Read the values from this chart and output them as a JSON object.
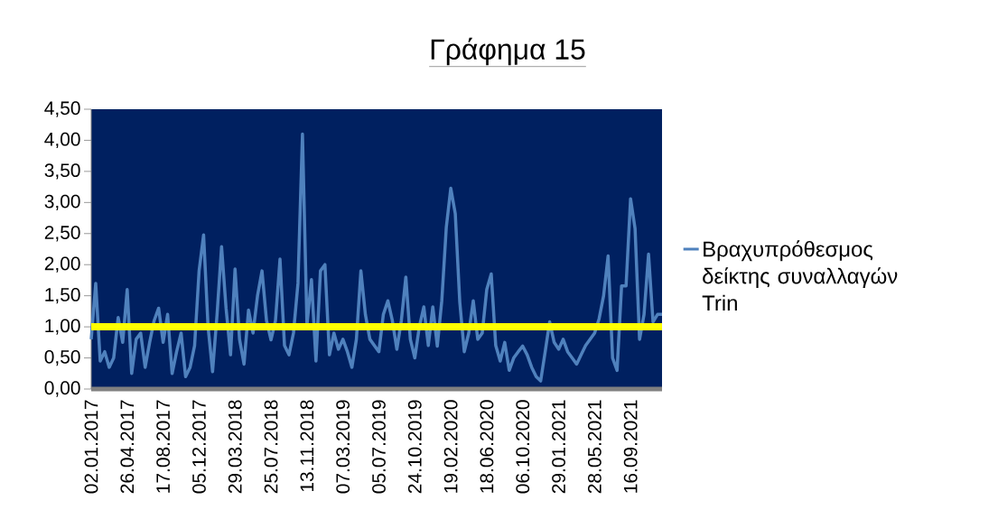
{
  "chart_data": {
    "type": "line",
    "title": "Γράφημα 15",
    "categories": [
      "02.01.2017",
      null,
      null,
      null,
      null,
      null,
      null,
      null,
      "26.04.2017",
      null,
      null,
      null,
      null,
      null,
      null,
      null,
      "17.08.2017",
      null,
      null,
      null,
      null,
      null,
      null,
      null,
      "05.12.2017",
      null,
      null,
      null,
      null,
      null,
      null,
      null,
      "29.03.2018",
      null,
      null,
      null,
      null,
      null,
      null,
      null,
      "25.07.2018",
      null,
      null,
      null,
      null,
      null,
      null,
      null,
      "13.11.2018",
      null,
      null,
      null,
      null,
      null,
      null,
      null,
      "07.03.2019",
      null,
      null,
      null,
      null,
      null,
      null,
      null,
      "05.07.2019",
      null,
      null,
      null,
      null,
      null,
      null,
      null,
      "24.10.2019",
      null,
      null,
      null,
      null,
      null,
      null,
      null,
      "19.02.2020",
      null,
      null,
      null,
      null,
      null,
      null,
      null,
      "18.06.2020",
      null,
      null,
      null,
      null,
      null,
      null,
      null,
      "06.10.2020",
      null,
      null,
      null,
      null,
      null,
      null,
      null,
      "29.01.2021",
      null,
      null,
      null,
      null,
      null,
      null,
      null,
      "28.05.2021",
      null,
      null,
      null,
      null,
      null,
      null,
      null,
      "16.09.2021",
      null,
      null,
      null,
      null,
      null,
      null,
      null
    ],
    "series": [
      {
        "name": "Βραχυπρόθεσμος δείκτης συναλλαγών Trin",
        "color": "#4f81bd",
        "values": [
          0.8,
          1.7,
          0.45,
          0.6,
          0.35,
          0.5,
          1.15,
          0.75,
          1.6,
          0.25,
          0.8,
          0.9,
          0.35,
          0.75,
          1.1,
          1.3,
          0.75,
          1.2,
          0.25,
          0.6,
          0.9,
          0.2,
          0.35,
          0.7,
          1.9,
          2.48,
          1.0,
          0.28,
          1.2,
          2.29,
          1.3,
          0.55,
          1.93,
          0.8,
          0.4,
          1.27,
          0.9,
          1.5,
          1.9,
          1.1,
          0.79,
          1.1,
          2.09,
          0.7,
          0.55,
          0.9,
          1.7,
          4.1,
          1.03,
          1.76,
          0.45,
          1.9,
          2.0,
          0.55,
          0.9,
          0.64,
          0.8,
          0.6,
          0.35,
          0.8,
          1.9,
          1.2,
          0.8,
          0.7,
          0.6,
          1.2,
          1.42,
          1.1,
          0.64,
          1.1,
          1.8,
          0.8,
          0.5,
          1.0,
          1.32,
          0.7,
          1.32,
          0.69,
          1.42,
          2.6,
          3.23,
          2.82,
          1.4,
          0.6,
          0.9,
          1.42,
          0.8,
          0.9,
          1.6,
          1.85,
          0.7,
          0.45,
          0.75,
          0.3,
          0.5,
          0.6,
          0.69,
          0.55,
          0.35,
          0.2,
          0.13,
          0.6,
          1.08,
          0.75,
          0.64,
          0.8,
          0.6,
          0.5,
          0.4,
          0.55,
          0.7,
          null,
          0.9,
          1.13,
          1.5,
          2.14,
          0.5,
          0.3,
          1.66,
          1.66,
          3.06,
          2.58,
          0.8,
          1.2,
          2.17,
          1.08,
          1.2,
          1.2
        ]
      }
    ],
    "ylim": [
      0,
      4.5
    ],
    "yticks": [
      {
        "value": 0,
        "label": "0,00"
      },
      {
        "value": 0.5,
        "label": "0,50"
      },
      {
        "value": 1,
        "label": "1,00"
      },
      {
        "value": 1.5,
        "label": "1,50"
      },
      {
        "value": 2,
        "label": "2,00"
      },
      {
        "value": 2.5,
        "label": "2,50"
      },
      {
        "value": 3,
        "label": "3,00"
      },
      {
        "value": 3.5,
        "label": "3,50"
      },
      {
        "value": 4,
        "label": "4,00"
      },
      {
        "value": 4.5,
        "label": "4,50"
      }
    ],
    "ref_lines": [
      {
        "axis": "y",
        "value": 1,
        "color": "#ffff00"
      }
    ],
    "legend": "right",
    "grid": false,
    "marker": "none",
    "line_style": "solid"
  }
}
